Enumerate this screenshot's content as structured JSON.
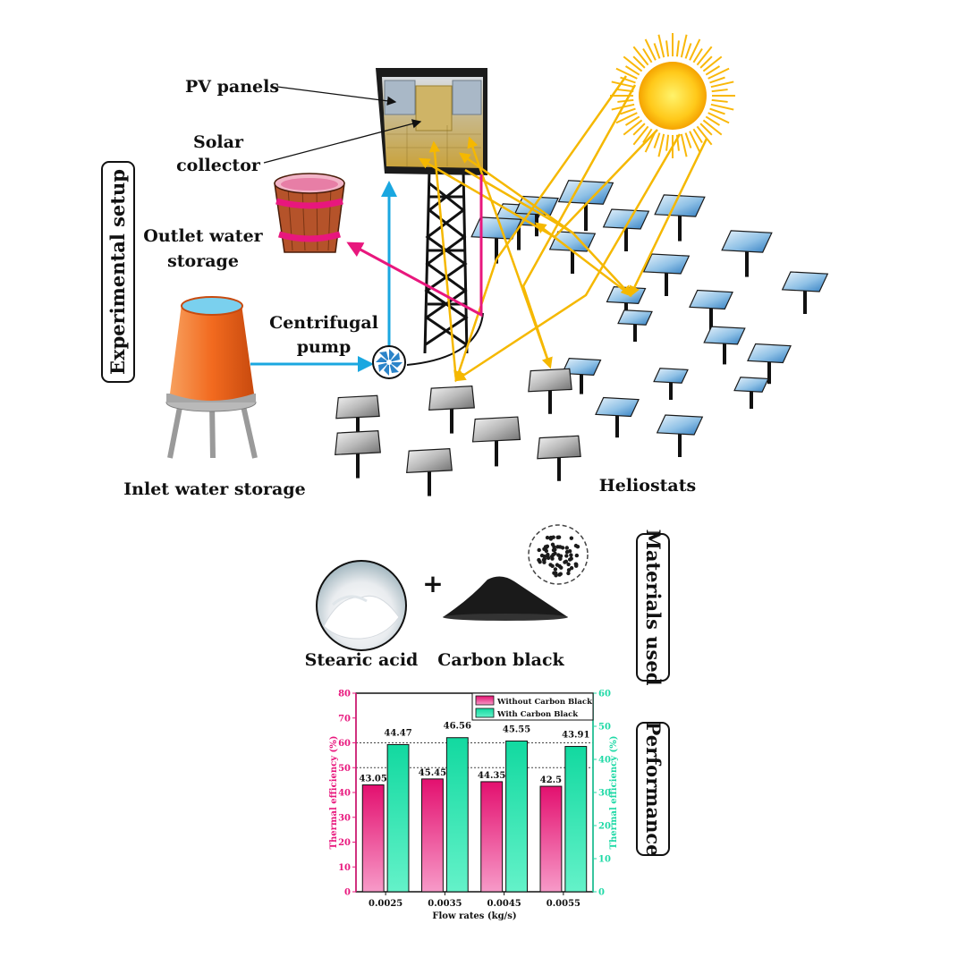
{
  "labels": {
    "pv_panels": "PV panels",
    "solar_collector_1": "Solar",
    "solar_collector_2": "collector",
    "outlet_1": "Outlet water",
    "outlet_2": "storage",
    "pump_1": "Centrifugal",
    "pump_2": "pump",
    "inlet": "Inlet water storage",
    "heliostats": "Heliostats",
    "stearic": "Stearic acid",
    "carbon": "Carbon black",
    "plus": "+"
  },
  "sections": {
    "setup": "Experimental setup",
    "materials": "Materials used",
    "performance": "Performance"
  },
  "colors": {
    "pink": "#e8177d",
    "green": "#1fd9a6",
    "cyan": "#1aa7e0",
    "ray": "#f5b800",
    "tank": "#f26a1f",
    "wood": "#b5532a"
  },
  "chart_data": {
    "type": "bar",
    "categories": [
      "0.0025",
      "0.0035",
      "0.0045",
      "0.0055"
    ],
    "series": [
      {
        "name": "Without Carbon Black",
        "axis": "left",
        "values": [
          43.05,
          45.45,
          44.35,
          42.5
        ],
        "labels": [
          "43.05",
          "45.45",
          "44.35",
          "42.5"
        ]
      },
      {
        "name": "With Carbon Black",
        "axis": "right",
        "values": [
          44.47,
          46.56,
          45.55,
          43.91
        ],
        "labels": [
          "44.47",
          "46.56",
          "45.55",
          "43.91"
        ]
      }
    ],
    "xlabel": "Flow rates (kg/s)",
    "ylabel_left": "Thermal efficiency (%)",
    "ylabel_right": "Thermal efficiency (%)",
    "ylim_left": [
      0,
      80
    ],
    "yticks_left": [
      "0",
      "10",
      "20",
      "30",
      "40",
      "50",
      "60",
      "70",
      "80"
    ],
    "ylim_right": [
      0,
      60
    ],
    "yticks_right": [
      "0",
      "10",
      "20",
      "30",
      "40",
      "50",
      "60"
    ],
    "reference_lines_left": [
      50,
      60
    ],
    "legend": "top-right"
  }
}
